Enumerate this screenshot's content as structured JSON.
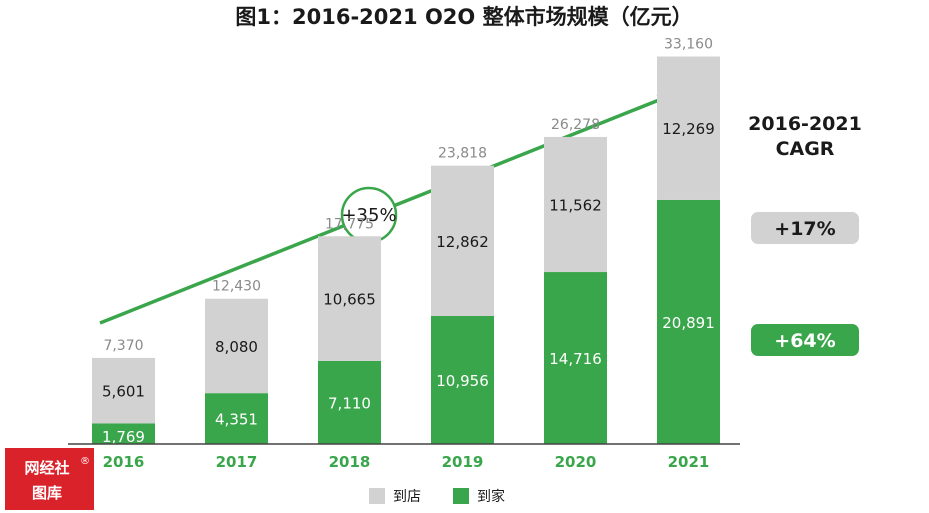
{
  "chart_data": {
    "type": "bar",
    "stacked": true,
    "title": "图1：2016-2021 O2O 整体市场规模（亿元）",
    "categories": [
      "2016",
      "2017",
      "2018",
      "2019",
      "2020",
      "2021"
    ],
    "series": [
      {
        "name": "到家",
        "color": "#3aa64b",
        "values": [
          1769,
          4351,
          7110,
          10956,
          14716,
          20891
        ]
      },
      {
        "name": "到店",
        "color": "#d2d2d2",
        "values": [
          5601,
          8080,
          10665,
          12862,
          11562,
          12269
        ]
      }
    ],
    "totals": [
      "7,370",
      "12,430",
      "17,775",
      "23,818",
      "26,278",
      "33,160"
    ],
    "segment_labels": {
      "到家": [
        "1,769",
        "4,351",
        "7,110",
        "10,956",
        "14,716",
        "20,891"
      ],
      "到店": [
        "5,601",
        "8,080",
        "10,665",
        "12,862",
        "11,562",
        "12,269"
      ]
    },
    "ylim": [
      0,
      35000
    ],
    "grid": false,
    "legend_position": "bottom-center",
    "growth_arrow_label": "+35%",
    "cagr": {
      "title_line1": "2016-2021",
      "title_line2": "CAGR",
      "到店": "+17%",
      "到家": "+64%"
    }
  },
  "colors": {
    "green": "#3aa64b",
    "gray": "#d2d2d2",
    "watermark": "#d9222a"
  },
  "watermark": {
    "line1": "网经社",
    "line2": "图库",
    "mark": "®"
  }
}
